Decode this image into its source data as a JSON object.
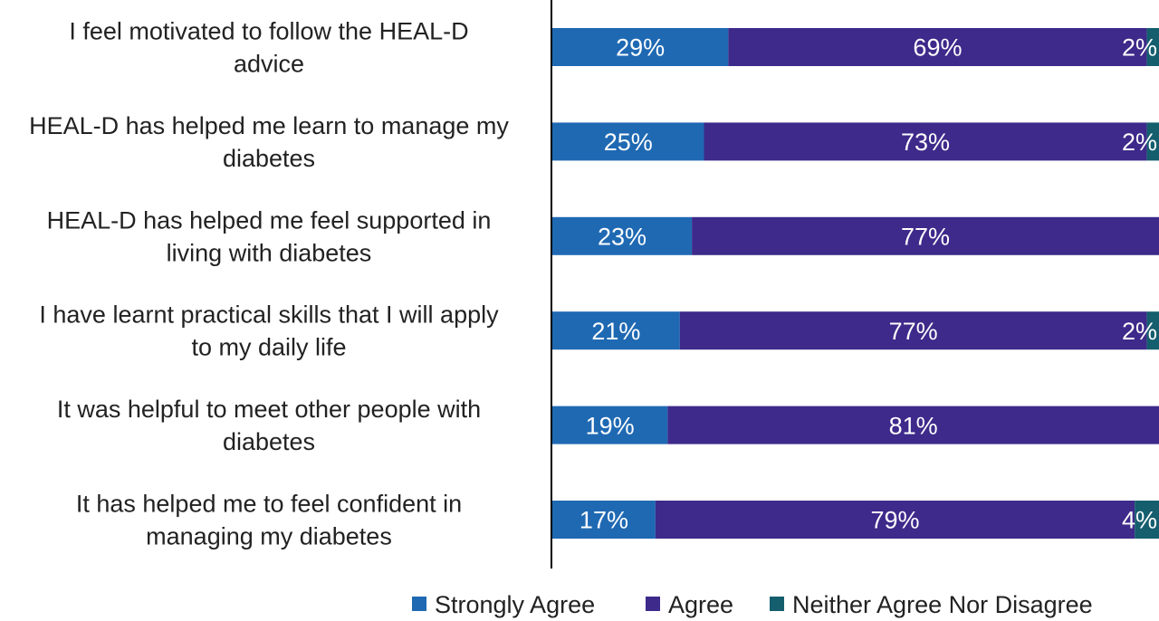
{
  "chart_data": {
    "type": "bar",
    "orientation": "horizontal",
    "stacked": true,
    "categories": [
      [
        "I feel motivated to follow the HEAL-D",
        "advice"
      ],
      [
        "HEAL-D has helped me learn to manage my",
        "diabetes"
      ],
      [
        "HEAL-D has helped me feel supported in",
        "living with diabetes"
      ],
      [
        "I have learnt practical skills that I will apply",
        "to my daily life"
      ],
      [
        "It was helpful to meet other people with",
        "diabetes"
      ],
      [
        "It has helped me to feel confident in",
        "managing my diabetes"
      ]
    ],
    "series": [
      {
        "name": "Strongly Agree",
        "color": "#1f69b3",
        "values": [
          29,
          25,
          23,
          21,
          19,
          17
        ],
        "labels": [
          "29%",
          "25%",
          "23%",
          "21%",
          "19%",
          "17%"
        ]
      },
      {
        "name": "Agree",
        "color": "#3d2a8a",
        "values": [
          69,
          73,
          77,
          77,
          81,
          79
        ],
        "labels": [
          "69%",
          "73%",
          "77%",
          "77%",
          "81%",
          "79%"
        ]
      },
      {
        "name": "Neither Agree Nor Disagree",
        "color": "#145e6e",
        "values": [
          2,
          2,
          0,
          2,
          0,
          4
        ],
        "labels": [
          "2%",
          "2%",
          "",
          "2%",
          "",
          "4%"
        ]
      }
    ],
    "xlim": [
      0,
      100
    ],
    "grid": false,
    "legend_position": "bottom-right"
  }
}
